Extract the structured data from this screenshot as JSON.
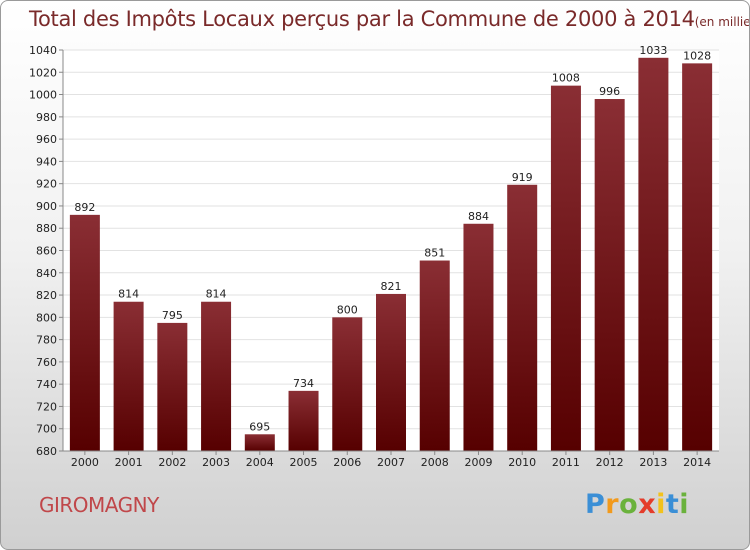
{
  "chart_data": {
    "type": "bar",
    "title": "Total des Impôts Locaux perçus par la Commune de 2000 à 2014",
    "unit": "(en milliers d'€)",
    "categories": [
      "2000",
      "2001",
      "2002",
      "2003",
      "2004",
      "2005",
      "2006",
      "2007",
      "2008",
      "2009",
      "2010",
      "2011",
      "2012",
      "2013",
      "2014"
    ],
    "values": [
      892,
      814,
      795,
      814,
      695,
      734,
      800,
      821,
      851,
      884,
      919,
      1008,
      996,
      1033,
      1028
    ],
    "ylim": [
      680,
      1040
    ],
    "ytick_step": 20,
    "xlabel": "",
    "ylabel": "",
    "grid": true
  },
  "commune": "GIROMAGNY",
  "logo": {
    "letters": [
      "P",
      "r",
      "o",
      "x",
      "i",
      "t",
      "i"
    ],
    "colors": [
      "#3b8fd6",
      "#f29a1c",
      "#6ab23c",
      "#e43c2a",
      "#f2c21c",
      "#3b8fd6",
      "#6ab23c"
    ]
  },
  "colors": {
    "bar_top": "#8a2e34",
    "bar_bottom": "#560000"
  }
}
